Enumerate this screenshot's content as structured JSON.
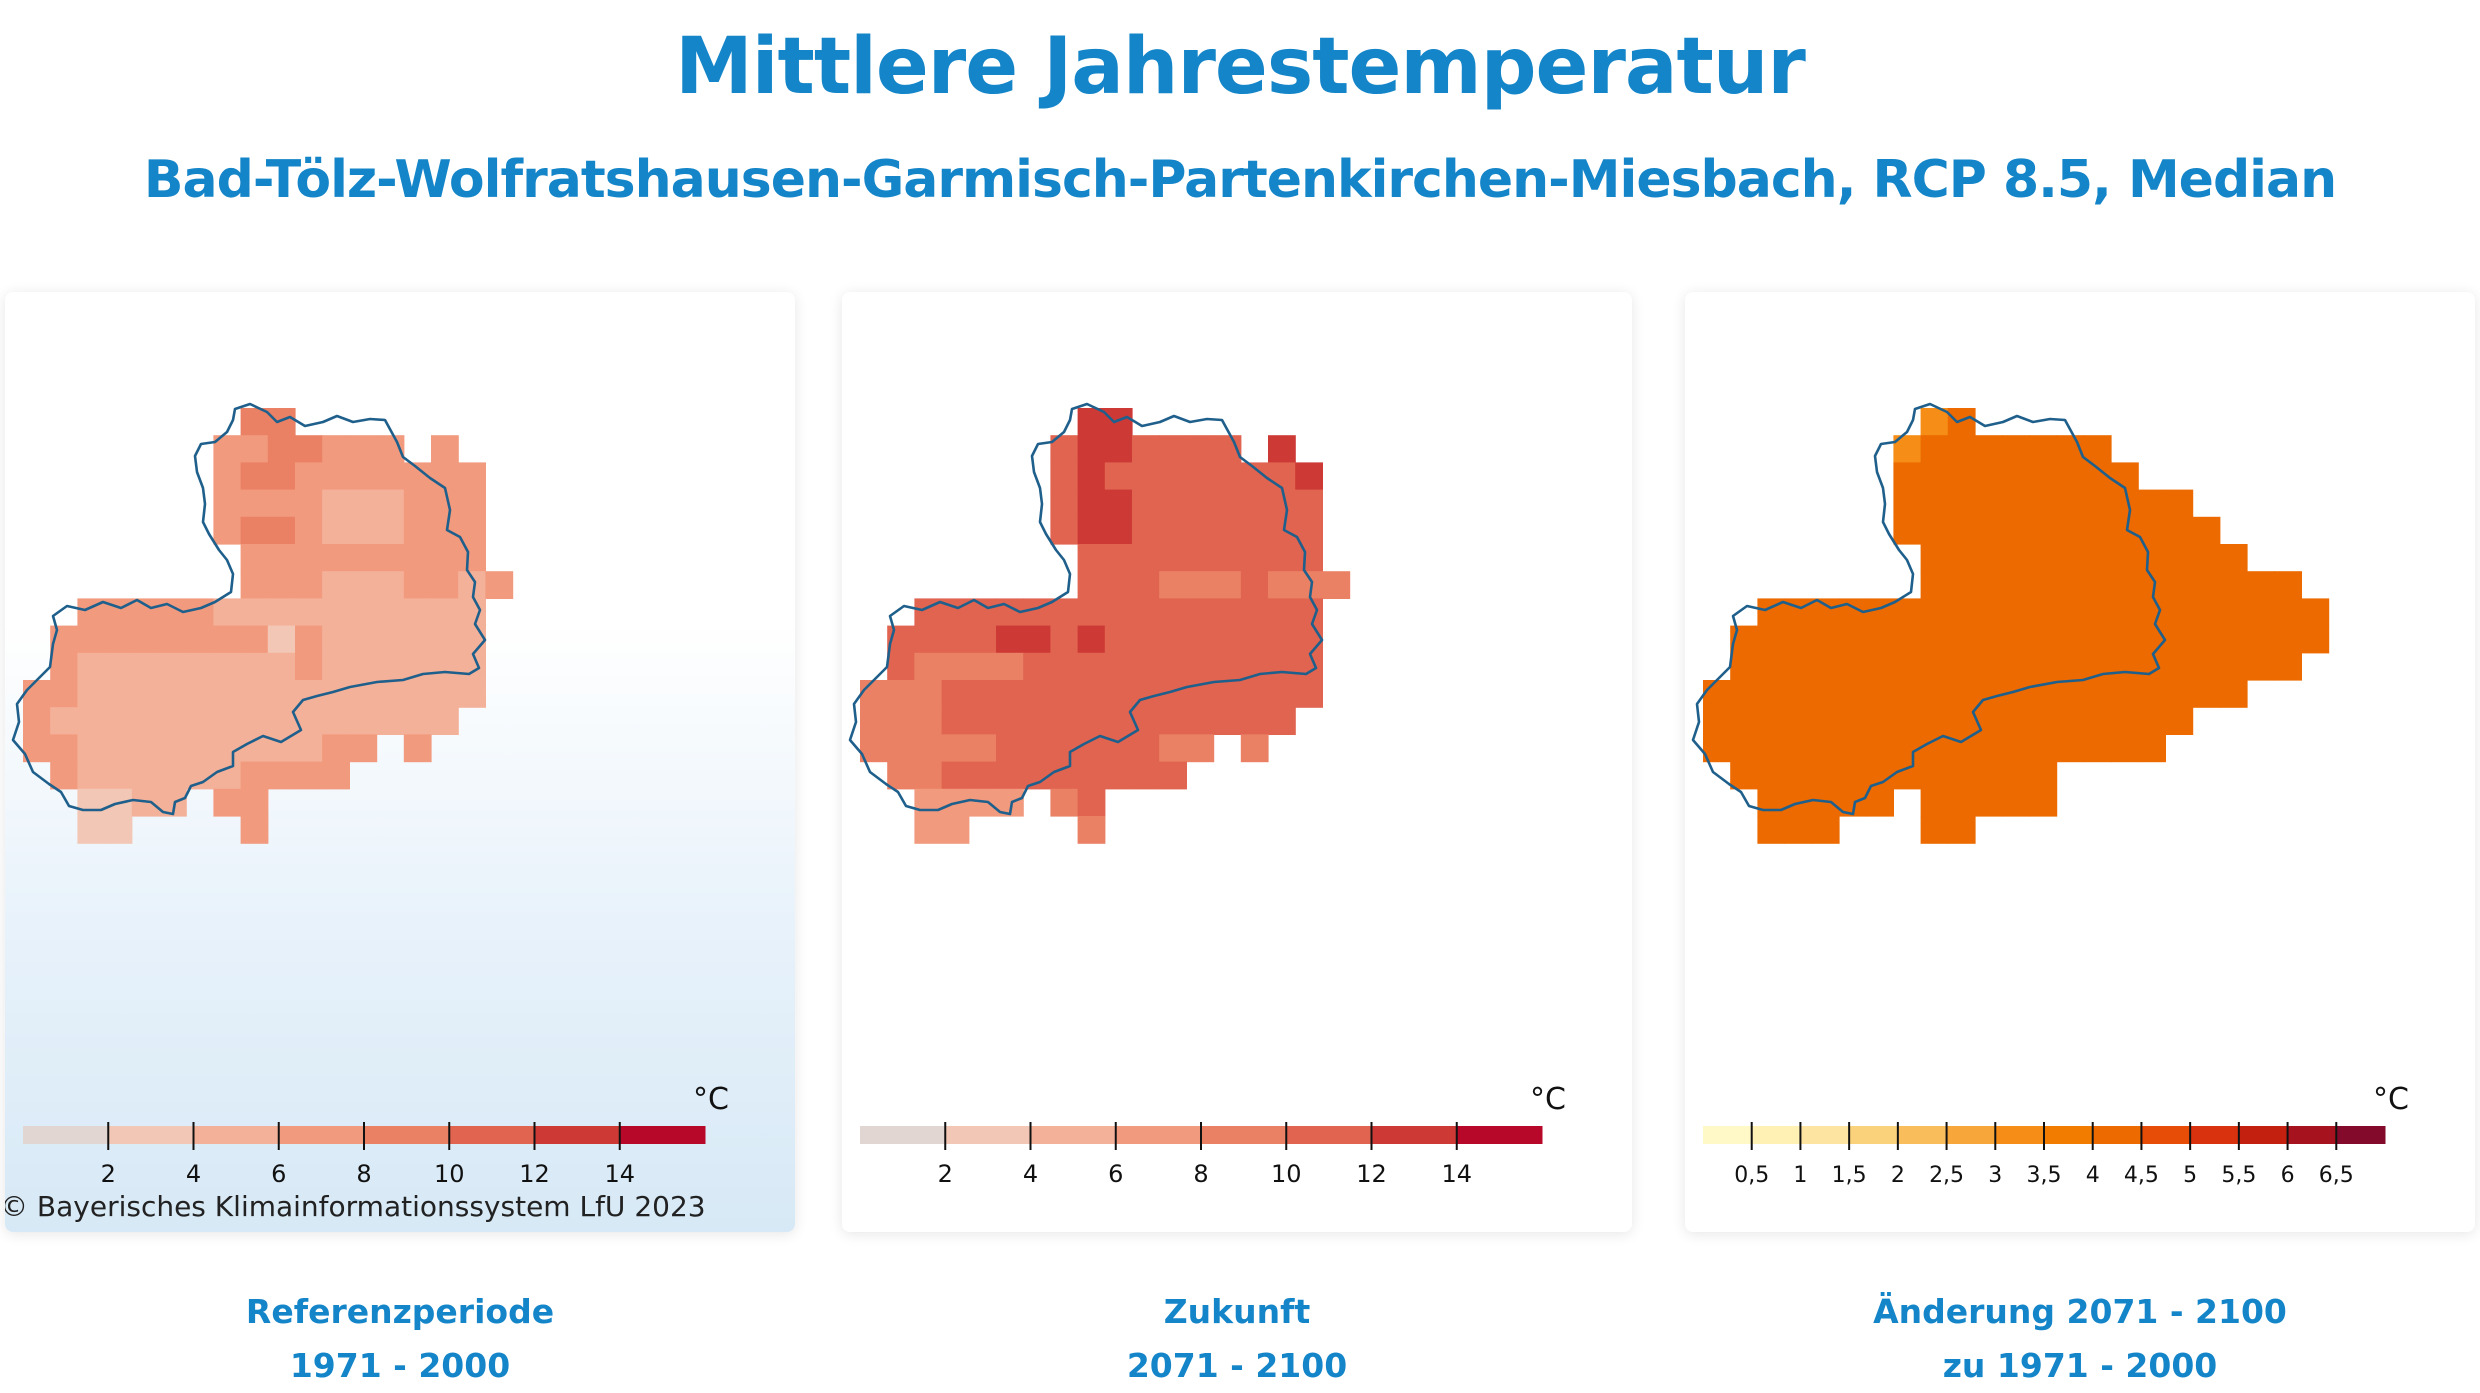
{
  "header": {
    "title": "Mittlere Jahrestemperatur",
    "subtitle": "Bad-Tölz-Wolfratshausen-Garmisch-Partenkirchen-Miesbach, RCP 8.5, Median"
  },
  "credit": "© Bayerisches Klimainformationssystem LfU 2023",
  "colors": {
    "title": "#1485c8",
    "outline": "#1f5f8b",
    "temp_scale": [
      "#e2d6d2",
      "#f2c7b5",
      "#f4b199",
      "#f29a7e",
      "#ea8165",
      "#e06450",
      "#cd3a36",
      "#b8082a"
    ],
    "change_scale": [
      "#fff8c7",
      "#fff1b3",
      "#fde5a1",
      "#fbd27c",
      "#f9be5b",
      "#f7a63a",
      "#f58d16",
      "#f27c00",
      "#ec6a00",
      "#e84d08",
      "#d9320f",
      "#c4200f",
      "#a6121e",
      "#830a2b",
      "#5e0226"
    ]
  },
  "panels": [
    {
      "id": "reference",
      "caption_line1": "Referenzperiode",
      "caption_line2": "1971 - 2000",
      "unit": "°C",
      "legend_ticks": [
        "2",
        "4",
        "6",
        "8",
        "10",
        "12",
        "14"
      ],
      "legend_range": [
        0,
        16
      ]
    },
    {
      "id": "future",
      "caption_line1": "Zukunft",
      "caption_line2": "2071 - 2100",
      "unit": "°C",
      "legend_ticks": [
        "2",
        "4",
        "6",
        "8",
        "10",
        "12",
        "14"
      ],
      "legend_range": [
        0,
        16
      ]
    },
    {
      "id": "change",
      "caption_line1": "Änderung 2071 - 2100",
      "caption_line2": "zu 1971 - 2000",
      "unit": "°C",
      "legend_ticks": [
        "0,5",
        "1",
        "1,5",
        "2",
        "2,5",
        "3",
        "3,5",
        "4",
        "4,5",
        "5",
        "5,5",
        "6",
        "6,5"
      ],
      "legend_range": [
        0,
        7
      ]
    }
  ],
  "map_data": {
    "reference_grid": [
      "........XX......................",
      ".......3344333.3................",
      ".......3443333333...............",
      ".......3333222333...............",
      ".......3443222333...............",
      "........333333333...............",
      "........3332223323..............",
      "..333332222222222...............",
      ".3333333313222222...............",
      ".3222222223222222...............",
      "33222222222222222...............",
      "3222222222222222................",
      "3322222222233.3.................",
      ".32222223333....................",
      "..1122.33.......................",
      "..11....3......................."
    ],
    "future_grid": [
      "........66......................",
      ".......5665555.6................",
      ".......5655555556...............",
      ".......5665555555...............",
      ".......5665555555...............",
      "........555555555...............",
      "........5554445444..............",
      "..555555555555555...............",
      ".5555665655555555...............",
      ".5444455555555555...............",
      "44455555555555555...............",
      "4445555555555555................",
      "4444455555544.4.................",
      ".44555555555....................",
      "..3333.45.......................",
      "..33....4......................."
    ],
    "change_grid": [
      "........ab......................",
      ".......abbbbbbb.................",
      ".......bbbbbbbbb................",
      ".......bbbbbbbbbbb..............",
      ".......bbbbbbbbbbbb.............",
      "........bbbbbbbbbbbb............",
      "........bbbbbbbbbbbbbb..........",
      "..bbbbbbbbbbbbbbbbbbbbb.........",
      ".bbbbbbbbbbbbbbbbbbbbbb.........",
      ".bbbbbbbbbbbbbbbbbbbbb..........",
      "bbbbbbbbbbbbbbbbbbbb............",
      "bbbbbbbbbbbbbbbbbb..............",
      "bbbbbbbbbbbbbbbbb...............",
      ".bbbbbbbbbbbb...................",
      "..bbbbb.bbbbb...................",
      "..bbb...bb......................"
    ]
  }
}
